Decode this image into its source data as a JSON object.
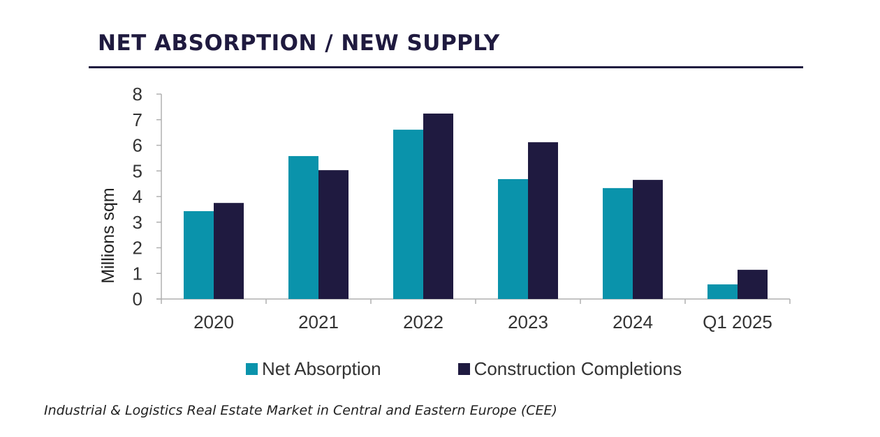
{
  "header": {
    "title": "NET ABSORPTION / NEW SUPPLY"
  },
  "caption": "Industrial & Logistics Real Estate Market in Central and Eastern Europe (CEE)",
  "colors": {
    "net_absorption": "#0a93ab",
    "construction_completions": "#1f1a40",
    "axis": "#b0b0b0",
    "title": "#1f1a3f"
  },
  "chart_data": {
    "type": "bar",
    "title": "NET ABSORPTION / NEW SUPPLY",
    "xlabel": "",
    "ylabel": "Millions sqm",
    "ylim": [
      0,
      8
    ],
    "yticks": [
      "0",
      "1",
      "2",
      "3",
      "4",
      "5",
      "6",
      "7",
      "8"
    ],
    "categories": [
      "2020",
      "2021",
      "2022",
      "2023",
      "2024",
      "Q1 2025"
    ],
    "series": [
      {
        "name": "Net Absorption",
        "color": "#0a93ab",
        "values": [
          3.43,
          5.58,
          6.61,
          4.68,
          4.33,
          0.57
        ]
      },
      {
        "name": "Construction Completions",
        "color": "#1f1a40",
        "values": [
          3.75,
          5.03,
          7.24,
          6.12,
          4.65,
          1.14
        ]
      }
    ],
    "grid": false,
    "legend": "bottom"
  }
}
